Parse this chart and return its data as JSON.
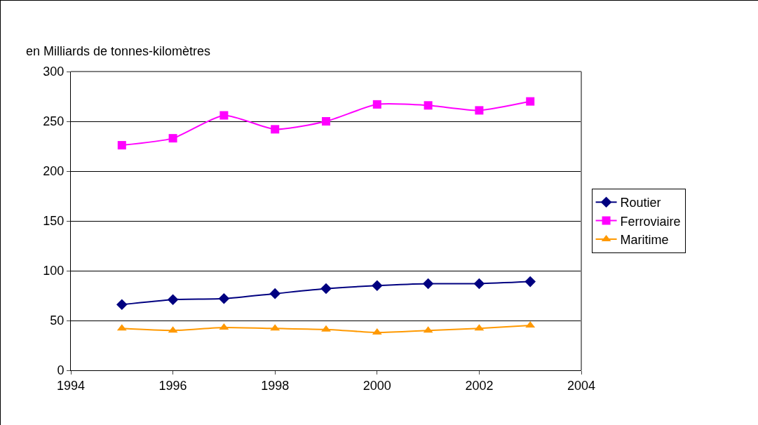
{
  "chart_data": {
    "type": "line",
    "ylabel": "en Milliards de tonnes-kilomètres",
    "x": [
      1995,
      1996,
      1997,
      1998,
      1999,
      2000,
      2001,
      2002,
      2003
    ],
    "series": [
      {
        "name": "Routier",
        "color": "#000080",
        "marker": "diamond",
        "values": [
          66,
          71,
          72,
          77,
          82,
          85,
          87,
          87,
          89
        ]
      },
      {
        "name": "Ferroviaire",
        "color": "#ff00ff",
        "marker": "square",
        "values": [
          226,
          233,
          256,
          242,
          250,
          267,
          266,
          261,
          270
        ]
      },
      {
        "name": "Maritime",
        "color": "#ff9900",
        "marker": "triangle",
        "values": [
          42,
          40,
          43,
          42,
          41,
          38,
          40,
          42,
          45
        ]
      }
    ],
    "xlim": [
      1994,
      2004
    ],
    "xticks": [
      1994,
      1996,
      1998,
      2000,
      2002,
      2004
    ],
    "ylim": [
      0,
      300
    ],
    "yticks": [
      0,
      50,
      100,
      150,
      200,
      250,
      300
    ],
    "grid": "y",
    "legend": "right",
    "line_style": "solid"
  }
}
